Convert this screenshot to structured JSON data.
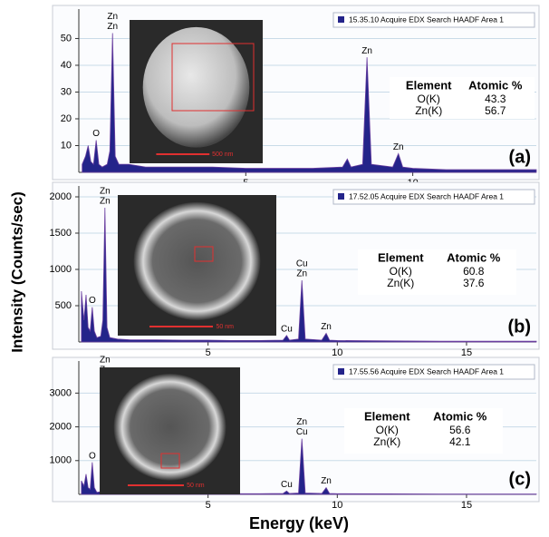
{
  "x_label": "Energy (keV)",
  "y_label": "Intensity (Counts/sec)",
  "chart_data": [
    {
      "type": "area",
      "panel_label": "(a)",
      "legend": "15.35.10 Acquire EDX Search HAADF Area 1",
      "scale_bar": "500 nm",
      "color": "#24248a",
      "grid": true,
      "xlim": [
        0,
        13.7
      ],
      "xticks": [
        5,
        10
      ],
      "ylim": [
        0,
        61
      ],
      "yticks": [
        10,
        20,
        30,
        40,
        50
      ],
      "x": [
        0.1,
        0.2,
        0.28,
        0.36,
        0.44,
        0.52,
        0.6,
        0.7,
        0.85,
        0.93,
        1.01,
        1.09,
        1.2,
        1.5,
        2,
        3,
        4,
        5,
        6,
        7,
        7.9,
        8.04,
        8.15,
        8.5,
        8.63,
        8.76,
        9.4,
        9.57,
        9.7,
        10,
        11,
        12,
        13,
        13.7
      ],
      "values": [
        3,
        6,
        10,
        4,
        3,
        12,
        3,
        2,
        3,
        8,
        52,
        6,
        3,
        3,
        2,
        2,
        2,
        1.5,
        1.5,
        1.5,
        2,
        5,
        2,
        3,
        43,
        3,
        2,
        7,
        2,
        1.5,
        1,
        1,
        1,
        1
      ],
      "peak_labels": [
        {
          "text": "O",
          "x": 0.52
        },
        {
          "text": "Zn",
          "x": 1.01
        },
        {
          "text": "Zn",
          "x": 1.01
        },
        {
          "text": "Zn",
          "x": 8.63
        },
        {
          "text": "Zn",
          "x": 9.57
        }
      ],
      "table": {
        "header": [
          "Element",
          "Atomic %"
        ],
        "rows": [
          [
            "O(K)",
            "43.3"
          ],
          [
            "Zn(K)",
            "56.7"
          ]
        ]
      }
    },
    {
      "type": "area",
      "panel_label": "(b)",
      "legend": "17.52.05 Acquire EDX Search HAADF Area 1",
      "scale_bar": "50 nm",
      "color": "#24248a",
      "grid": true,
      "xlim": [
        0,
        17.7
      ],
      "xticks": [
        5,
        10,
        15
      ],
      "ylim": [
        0,
        2150
      ],
      "yticks": [
        500,
        1000,
        1500,
        2000
      ],
      "x": [
        0.1,
        0.2,
        0.28,
        0.36,
        0.44,
        0.52,
        0.6,
        0.7,
        0.85,
        0.93,
        1.01,
        1.09,
        1.2,
        1.5,
        2,
        3,
        4,
        5,
        6,
        7,
        7.9,
        8.04,
        8.15,
        8.5,
        8.63,
        8.76,
        9.4,
        9.57,
        9.7,
        10,
        12,
        14,
        16,
        17.7
      ],
      "values": [
        700,
        300,
        650,
        200,
        150,
        480,
        150,
        60,
        80,
        300,
        1850,
        200,
        60,
        40,
        30,
        30,
        25,
        25,
        20,
        20,
        25,
        90,
        25,
        40,
        850,
        40,
        25,
        120,
        25,
        20,
        15,
        10,
        10,
        10
      ],
      "peak_labels": [
        {
          "text": "O",
          "x": 0.52
        },
        {
          "text": "Zn",
          "x": 1.01
        },
        {
          "text": "Zn",
          "x": 1.01
        },
        {
          "text": "Cu",
          "x": 8.04
        },
        {
          "text": "Cu",
          "x": 8.63
        },
        {
          "text": "Zn",
          "x": 8.63
        },
        {
          "text": "Zn",
          "x": 9.57
        }
      ],
      "table": {
        "header": [
          "Element",
          "Atomic %"
        ],
        "rows": [
          [
            "O(K)",
            "60.8"
          ],
          [
            "Zn(K)",
            "37.6"
          ]
        ]
      }
    },
    {
      "type": "area",
      "panel_label": "(c)",
      "legend": "17.55.56 Acquire EDX Search HAADF Area 1",
      "scale_bar": "50 nm",
      "color": "#24248a",
      "grid": true,
      "xlim": [
        0,
        17.7
      ],
      "xticks": [
        5,
        10,
        15
      ],
      "ylim": [
        0,
        3950
      ],
      "yticks": [
        1000,
        2000,
        3000
      ],
      "x": [
        0.1,
        0.2,
        0.28,
        0.36,
        0.44,
        0.52,
        0.6,
        0.7,
        0.85,
        0.93,
        1.01,
        1.09,
        1.2,
        1.5,
        2,
        3,
        4,
        5,
        6,
        7,
        7.9,
        8.04,
        8.15,
        8.5,
        8.63,
        8.76,
        9.4,
        9.57,
        9.7,
        10,
        12,
        14,
        16,
        17.7
      ],
      "values": [
        400,
        250,
        600,
        200,
        150,
        950,
        200,
        60,
        80,
        400,
        3500,
        300,
        60,
        40,
        30,
        30,
        25,
        25,
        20,
        20,
        25,
        100,
        25,
        40,
        1650,
        40,
        25,
        200,
        25,
        20,
        15,
        10,
        10,
        10
      ],
      "peak_labels": [
        {
          "text": "O",
          "x": 0.52
        },
        {
          "text": "Zn",
          "x": 1.01
        },
        {
          "text": "Zn",
          "x": 1.01
        },
        {
          "text": "Cu",
          "x": 8.04
        },
        {
          "text": "Zn",
          "x": 8.63
        },
        {
          "text": "Cu",
          "x": 8.63
        },
        {
          "text": "Zn",
          "x": 9.57
        }
      ],
      "table": {
        "header": [
          "Element",
          "Atomic %"
        ],
        "rows": [
          [
            "O(K)",
            "56.6"
          ],
          [
            "Zn(K)",
            "42.1"
          ]
        ]
      }
    }
  ]
}
